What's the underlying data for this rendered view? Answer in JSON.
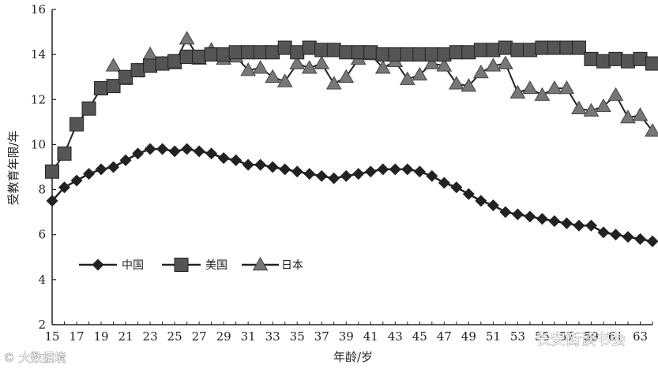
{
  "chart_data": {
    "type": "line",
    "title": "",
    "xlabel": "年龄/岁",
    "ylabel": "受教育年限/年",
    "x": [
      15,
      16,
      17,
      18,
      19,
      20,
      21,
      22,
      23,
      24,
      25,
      26,
      27,
      28,
      29,
      30,
      31,
      32,
      33,
      34,
      35,
      36,
      37,
      38,
      39,
      40,
      41,
      42,
      43,
      44,
      45,
      46,
      47,
      48,
      49,
      50,
      51,
      52,
      53,
      54,
      55,
      56,
      57,
      58,
      59,
      60,
      61,
      62,
      63,
      64
    ],
    "xlim": [
      15,
      64
    ],
    "ylim": [
      2,
      16
    ],
    "x_ticks": [
      "15",
      "17",
      "19",
      "21",
      "23",
      "25",
      "27",
      "29",
      "31",
      "33",
      "35",
      "37",
      "39",
      "41",
      "43",
      "45",
      "47",
      "49",
      "51",
      "53",
      "55",
      "57",
      "59",
      "61",
      "63"
    ],
    "y_ticks": [
      "2",
      "4",
      "6",
      "8",
      "10",
      "12",
      "14",
      "16"
    ],
    "grid": false,
    "legend": "bottom-left",
    "series": [
      {
        "name": "中国",
        "marker": "diamond",
        "values": [
          7.5,
          8.1,
          8.4,
          8.7,
          8.9,
          9.0,
          9.3,
          9.6,
          9.8,
          9.8,
          9.7,
          9.8,
          9.7,
          9.6,
          9.4,
          9.3,
          9.1,
          9.1,
          9.0,
          8.9,
          8.8,
          8.7,
          8.6,
          8.5,
          8.6,
          8.7,
          8.8,
          8.9,
          8.9,
          8.9,
          8.8,
          8.6,
          8.3,
          8.1,
          7.8,
          7.5,
          7.3,
          7.0,
          6.9,
          6.8,
          6.7,
          6.6,
          6.5,
          6.4,
          6.4,
          6.1,
          6.0,
          5.9,
          5.8,
          5.7
        ]
      },
      {
        "name": "美国",
        "marker": "square",
        "values": [
          8.8,
          9.6,
          10.9,
          11.6,
          12.5,
          12.6,
          13.0,
          13.3,
          13.5,
          13.6,
          13.7,
          13.9,
          13.9,
          14.0,
          14.0,
          14.1,
          14.1,
          14.1,
          14.1,
          14.3,
          14.1,
          14.3,
          14.2,
          14.2,
          14.1,
          14.1,
          14.1,
          14.0,
          14.0,
          14.0,
          14.0,
          14.0,
          14.0,
          14.1,
          14.1,
          14.2,
          14.2,
          14.3,
          14.2,
          14.2,
          14.3,
          14.3,
          14.3,
          14.3,
          13.8,
          13.7,
          13.8,
          13.7,
          13.8,
          13.6
        ]
      },
      {
        "name": "日本",
        "marker": "triangle",
        "values": [
          null,
          null,
          null,
          null,
          null,
          13.5,
          12.9,
          13.3,
          14.0,
          13.6,
          13.6,
          14.7,
          13.8,
          14.2,
          13.8,
          13.9,
          13.3,
          13.4,
          13.0,
          12.8,
          13.6,
          13.4,
          13.6,
          12.7,
          13.0,
          13.8,
          14.0,
          13.4,
          13.7,
          12.9,
          13.1,
          13.6,
          13.5,
          12.7,
          12.6,
          13.2,
          13.5,
          13.6,
          12.3,
          12.5,
          12.2,
          12.5,
          12.5,
          11.6,
          11.5,
          11.7,
          12.2,
          11.2,
          11.3,
          10.6
        ]
      }
    ]
  },
  "watermarks": {
    "left": "© 大数据境",
    "right": "长安街读书会"
  },
  "colors": {
    "line": "#222222",
    "text": "#222222",
    "background": "#ffffff"
  }
}
